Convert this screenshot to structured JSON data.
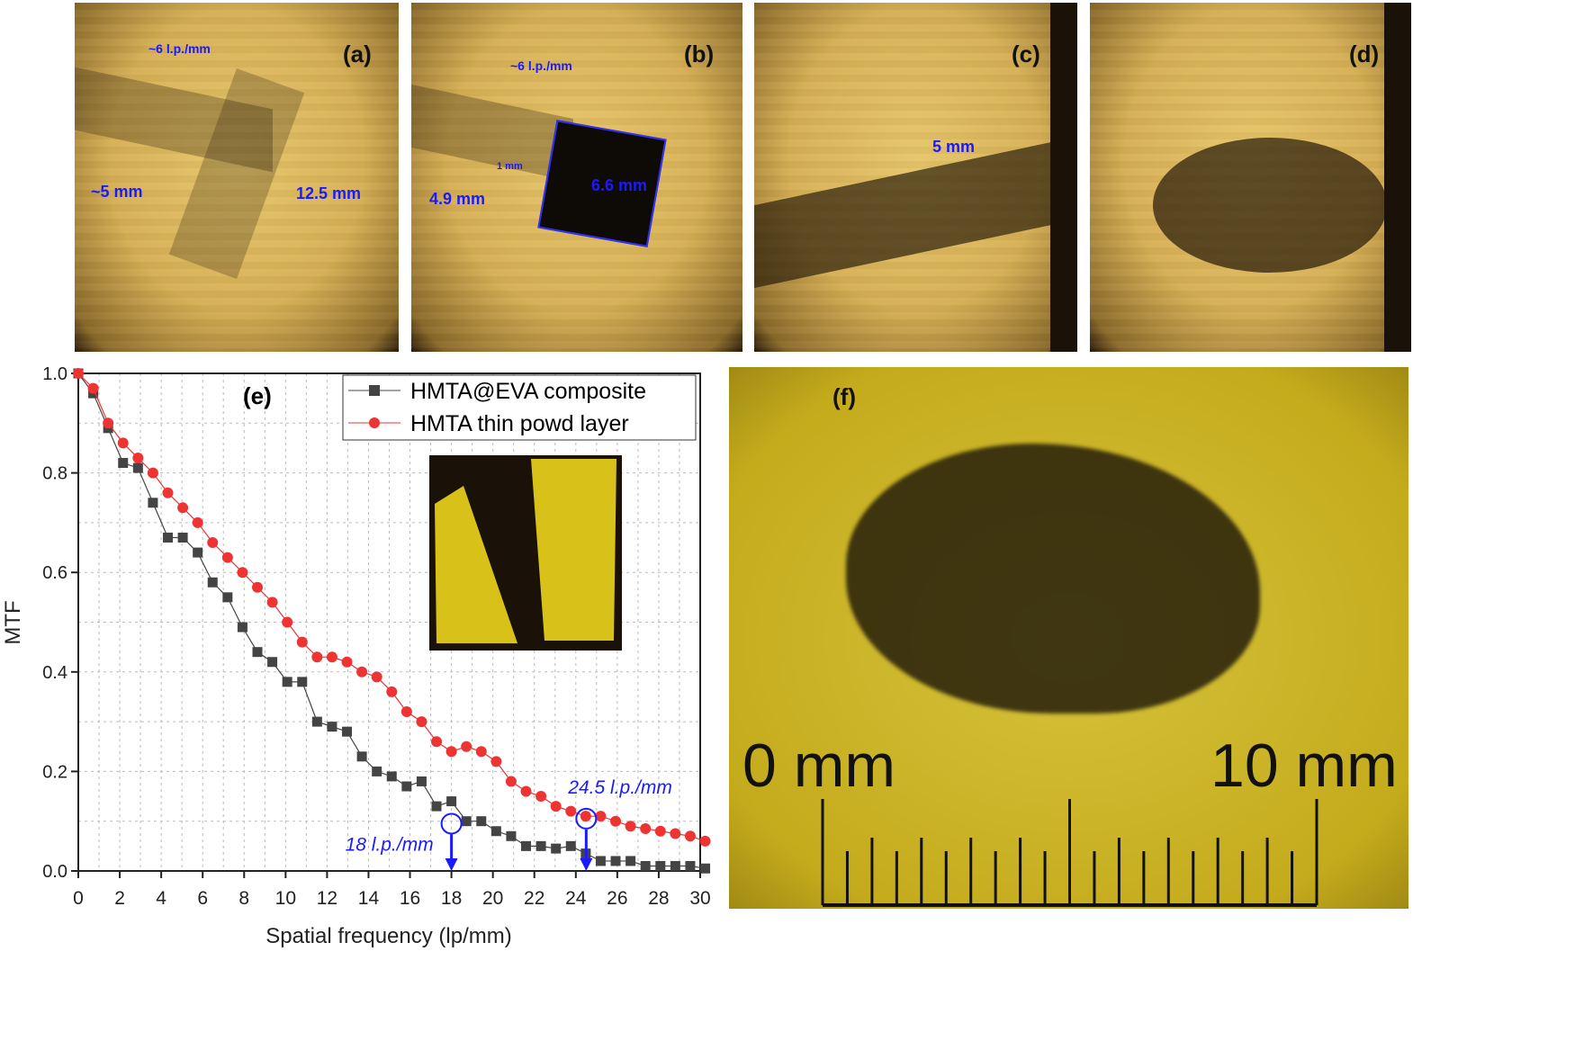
{
  "panels_top": [
    {
      "label": "(a)",
      "annotations": [
        "~6 l.p./mm",
        "~5 mm",
        "12.5 mm"
      ]
    },
    {
      "label": "(b)",
      "annotations": [
        "~6 l.p./mm",
        "1 mm",
        "4.9 mm",
        "6.6 mm"
      ]
    },
    {
      "label": "(c)",
      "annotations": [
        "5 mm"
      ]
    },
    {
      "label": "(d)",
      "annotations": []
    }
  ],
  "panel_f": {
    "label": "(f)",
    "scale_start": "0 mm",
    "scale_end": "10 mm"
  },
  "colors": {
    "series1": "#444444",
    "series2": "#ee3333",
    "annotation": "#1a1aff"
  },
  "chart_data": {
    "type": "line",
    "panel_label": "(e)",
    "xlabel": "Spatial frequency (lp/mm)",
    "ylabel": "MTF",
    "xlim": [
      0,
      30
    ],
    "ylim": [
      0,
      1.0
    ],
    "xticks": [
      0,
      2,
      4,
      6,
      8,
      10,
      12,
      14,
      16,
      18,
      20,
      22,
      24,
      26,
      28,
      30
    ],
    "yticks": [
      "0.0",
      "0.2",
      "0.4",
      "0.6",
      "0.8",
      "1.0"
    ],
    "grid": true,
    "legend_position": "top-right",
    "x": [
      0,
      0.72,
      1.44,
      2.16,
      2.88,
      3.6,
      4.32,
      5.04,
      5.76,
      6.48,
      7.2,
      7.92,
      8.64,
      9.36,
      10.08,
      10.8,
      11.52,
      12.24,
      12.96,
      13.68,
      14.4,
      15.12,
      15.84,
      16.56,
      17.28,
      18,
      18.72,
      19.44,
      20.16,
      20.88,
      21.6,
      22.32,
      23.04,
      23.76,
      24.48,
      25.2,
      25.92,
      26.64,
      27.36,
      28.08,
      28.8,
      29.52,
      30.24
    ],
    "series": [
      {
        "name": "HMTA@EVA composite",
        "marker": "square",
        "values": [
          1.0,
          0.96,
          0.89,
          0.82,
          0.81,
          0.74,
          0.67,
          0.67,
          0.64,
          0.58,
          0.55,
          0.49,
          0.44,
          0.42,
          0.38,
          0.38,
          0.3,
          0.29,
          0.28,
          0.23,
          0.2,
          0.19,
          0.17,
          0.18,
          0.13,
          0.14,
          0.1,
          0.1,
          0.08,
          0.07,
          0.05,
          0.05,
          0.045,
          0.05,
          0.035,
          0.02,
          0.02,
          0.02,
          0.01,
          0.01,
          0.01,
          0.01,
          0.005
        ]
      },
      {
        "name": "HMTA thin powd layer",
        "marker": "circle",
        "values": [
          1.0,
          0.97,
          0.9,
          0.86,
          0.83,
          0.8,
          0.76,
          0.73,
          0.7,
          0.66,
          0.63,
          0.6,
          0.57,
          0.54,
          0.5,
          0.46,
          0.43,
          0.43,
          0.42,
          0.4,
          0.39,
          0.36,
          0.32,
          0.3,
          0.26,
          0.24,
          0.25,
          0.24,
          0.22,
          0.18,
          0.16,
          0.15,
          0.13,
          0.12,
          0.11,
          0.11,
          0.1,
          0.09,
          0.085,
          0.08,
          0.075,
          0.07,
          0.06
        ]
      }
    ],
    "annotations": [
      {
        "text": "18 l.p./mm",
        "x": 18,
        "y": 0.095
      },
      {
        "text": "24.5 l.p./mm",
        "x": 24.5,
        "y": 0.105
      }
    ]
  }
}
